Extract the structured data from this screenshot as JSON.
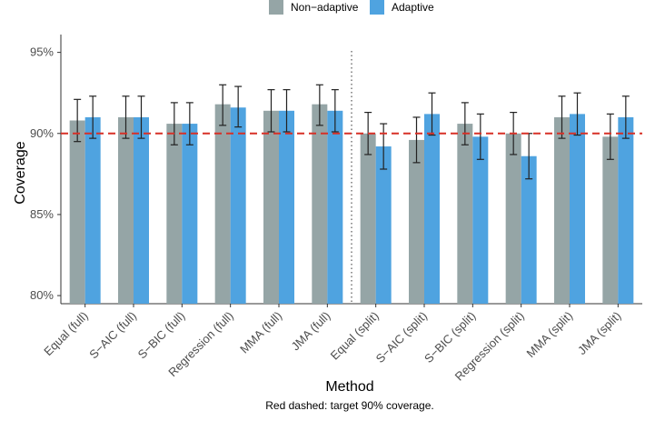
{
  "chart_data": {
    "type": "bar",
    "xlabel": "Method",
    "ylabel": "Coverage",
    "caption": "Red dashed: target 90% coverage.",
    "categories": [
      "Equal (full)",
      "S−AIC (full)",
      "S−BIC (full)",
      "Regression (full)",
      "MMA (full)",
      "JMA (full)",
      "Equal (split)",
      "S−AIC (split)",
      "S−BIC (split)",
      "Regression (split)",
      "MMA (split)",
      "JMA (split)"
    ],
    "series": [
      {
        "name": "Non−adaptive",
        "color": "#95a5a6",
        "values": [
          0.908,
          0.91,
          0.906,
          0.918,
          0.914,
          0.918,
          0.9,
          0.896,
          0.906,
          0.9,
          0.91,
          0.898
        ],
        "err_low": [
          0.895,
          0.897,
          0.893,
          0.905,
          0.901,
          0.905,
          0.887,
          0.882,
          0.893,
          0.887,
          0.897,
          0.884
        ],
        "err_high": [
          0.921,
          0.923,
          0.919,
          0.93,
          0.927,
          0.93,
          0.913,
          0.91,
          0.919,
          0.913,
          0.923,
          0.912
        ]
      },
      {
        "name": "Adaptive",
        "color": "#4fa3e0",
        "values": [
          0.91,
          0.91,
          0.906,
          0.916,
          0.914,
          0.914,
          0.892,
          0.912,
          0.898,
          0.886,
          0.912,
          0.91
        ],
        "err_low": [
          0.897,
          0.897,
          0.893,
          0.904,
          0.901,
          0.901,
          0.878,
          0.899,
          0.884,
          0.872,
          0.899,
          0.897
        ],
        "err_high": [
          0.923,
          0.923,
          0.919,
          0.929,
          0.927,
          0.927,
          0.906,
          0.925,
          0.912,
          0.9,
          0.925,
          0.923
        ]
      }
    ],
    "yticks": [
      "80%",
      "85%",
      "90%",
      "95%"
    ],
    "ytick_values": [
      0.8,
      0.85,
      0.9,
      0.95
    ],
    "ylim": [
      0.795,
      0.961
    ],
    "reference_line": {
      "value": 0.9,
      "color": "#d73027",
      "style": "dashed"
    },
    "divider_after_index": 5,
    "legend_position": "top",
    "grid": false
  }
}
